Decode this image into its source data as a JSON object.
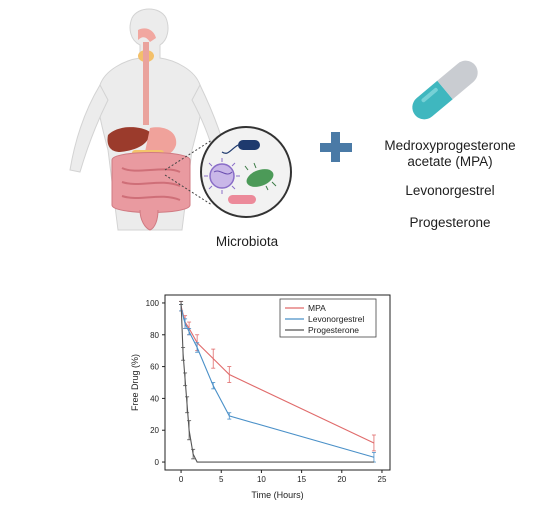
{
  "illustration": {
    "microbiota_label": "Microbiota",
    "drugs": [
      "Medroxyprogesterone acetate (MPA)",
      "Levonorgestrel",
      "Progesterone"
    ],
    "icons": [
      "human-body-icon",
      "microbiota-circle-icon",
      "plus-icon",
      "capsule-icon"
    ],
    "colors": {
      "plus": "#4a7aa6",
      "capsule_teal": "#3fb7bf",
      "capsule_grey": "#c9ccd1",
      "body_skin": "#e9e9e9",
      "intestine": "#e99aa0"
    }
  },
  "chart_data": {
    "type": "line",
    "xlabel": "Time (Hours)",
    "ylabel": "Free Drug (%)",
    "xlim": [
      -2,
      26
    ],
    "ylim": [
      -5,
      105
    ],
    "xticks": [
      0,
      5,
      10,
      15,
      20,
      25
    ],
    "yticks": [
      0,
      20,
      40,
      60,
      80,
      100
    ],
    "legend_position": "top-right",
    "series": [
      {
        "name": "MPA",
        "color": "#e06b6b",
        "x": [
          0,
          0.5,
          1,
          2,
          4,
          6,
          24
        ],
        "y": [
          98,
          88,
          84,
          75,
          65,
          55,
          12
        ],
        "err": [
          3,
          4,
          4,
          5,
          6,
          5,
          5
        ]
      },
      {
        "name": "Levonorgestrel",
        "color": "#4a90c8",
        "x": [
          0,
          0.5,
          1,
          2,
          4,
          6,
          24
        ],
        "y": [
          97,
          87,
          82,
          72,
          48,
          29,
          3
        ],
        "err": [
          2,
          3,
          2,
          3,
          2,
          2,
          3
        ]
      },
      {
        "name": "Progesterone",
        "color": "#555555",
        "x": [
          0,
          0.25,
          0.5,
          0.75,
          1,
          1.5,
          2,
          24
        ],
        "y": [
          100,
          68,
          52,
          36,
          20,
          5,
          0,
          0
        ],
        "err": [
          1,
          4,
          4,
          5,
          6,
          3,
          0,
          0
        ]
      }
    ]
  }
}
